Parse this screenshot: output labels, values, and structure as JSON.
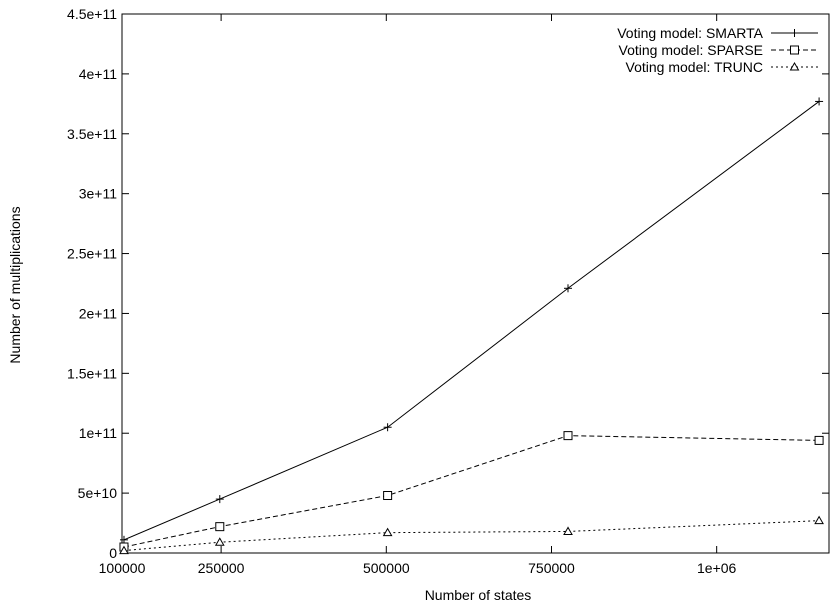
{
  "chart_data": {
    "type": "line",
    "xlabel": "Number of states",
    "ylabel": "Number of multiplications",
    "xlim": [
      100000,
      1170000
    ],
    "ylim": [
      0,
      450000000000
    ],
    "x_ticks": [
      {
        "value": 100000,
        "label": "100000"
      },
      {
        "value": 250000,
        "label": "250000"
      },
      {
        "value": 500000,
        "label": "500000"
      },
      {
        "value": 750000,
        "label": "750000"
      },
      {
        "value": 1000000,
        "label": "1e+06"
      }
    ],
    "y_ticks": [
      {
        "value": 0,
        "label": "0"
      },
      {
        "value": 50000000000,
        "label": "5e+10"
      },
      {
        "value": 100000000000,
        "label": "1e+11"
      },
      {
        "value": 150000000000,
        "label": "1.5e+11"
      },
      {
        "value": 200000000000,
        "label": "2e+11"
      },
      {
        "value": 250000000000,
        "label": "2.5e+11"
      },
      {
        "value": 300000000000,
        "label": "3e+11"
      },
      {
        "value": 350000000000,
        "label": "3.5e+11"
      },
      {
        "value": 400000000000,
        "label": "4e+11"
      },
      {
        "value": 450000000000,
        "label": "4.5e+11"
      }
    ],
    "grid": false,
    "legend_position": "top-right",
    "series": [
      {
        "name": "Voting model: SMARTA",
        "marker": "plus",
        "dash": "solid",
        "x": [
          103000,
          248000,
          502000,
          775000,
          1155000
        ],
        "values": [
          11000000000,
          45000000000,
          105000000000,
          221000000000,
          377000000000
        ]
      },
      {
        "name": "Voting model: SPARSE",
        "marker": "square",
        "dash": "dashed",
        "x": [
          103000,
          248000,
          502000,
          775000,
          1155000
        ],
        "values": [
          5000000000,
          22000000000,
          48000000000,
          98000000000,
          94000000000
        ]
      },
      {
        "name": "Voting model: TRUNC",
        "marker": "triangle",
        "dash": "dotted",
        "x": [
          103000,
          248000,
          502000,
          775000,
          1155000
        ],
        "values": [
          2000000000,
          9000000000,
          17000000000,
          18000000000,
          27000000000
        ]
      }
    ]
  }
}
